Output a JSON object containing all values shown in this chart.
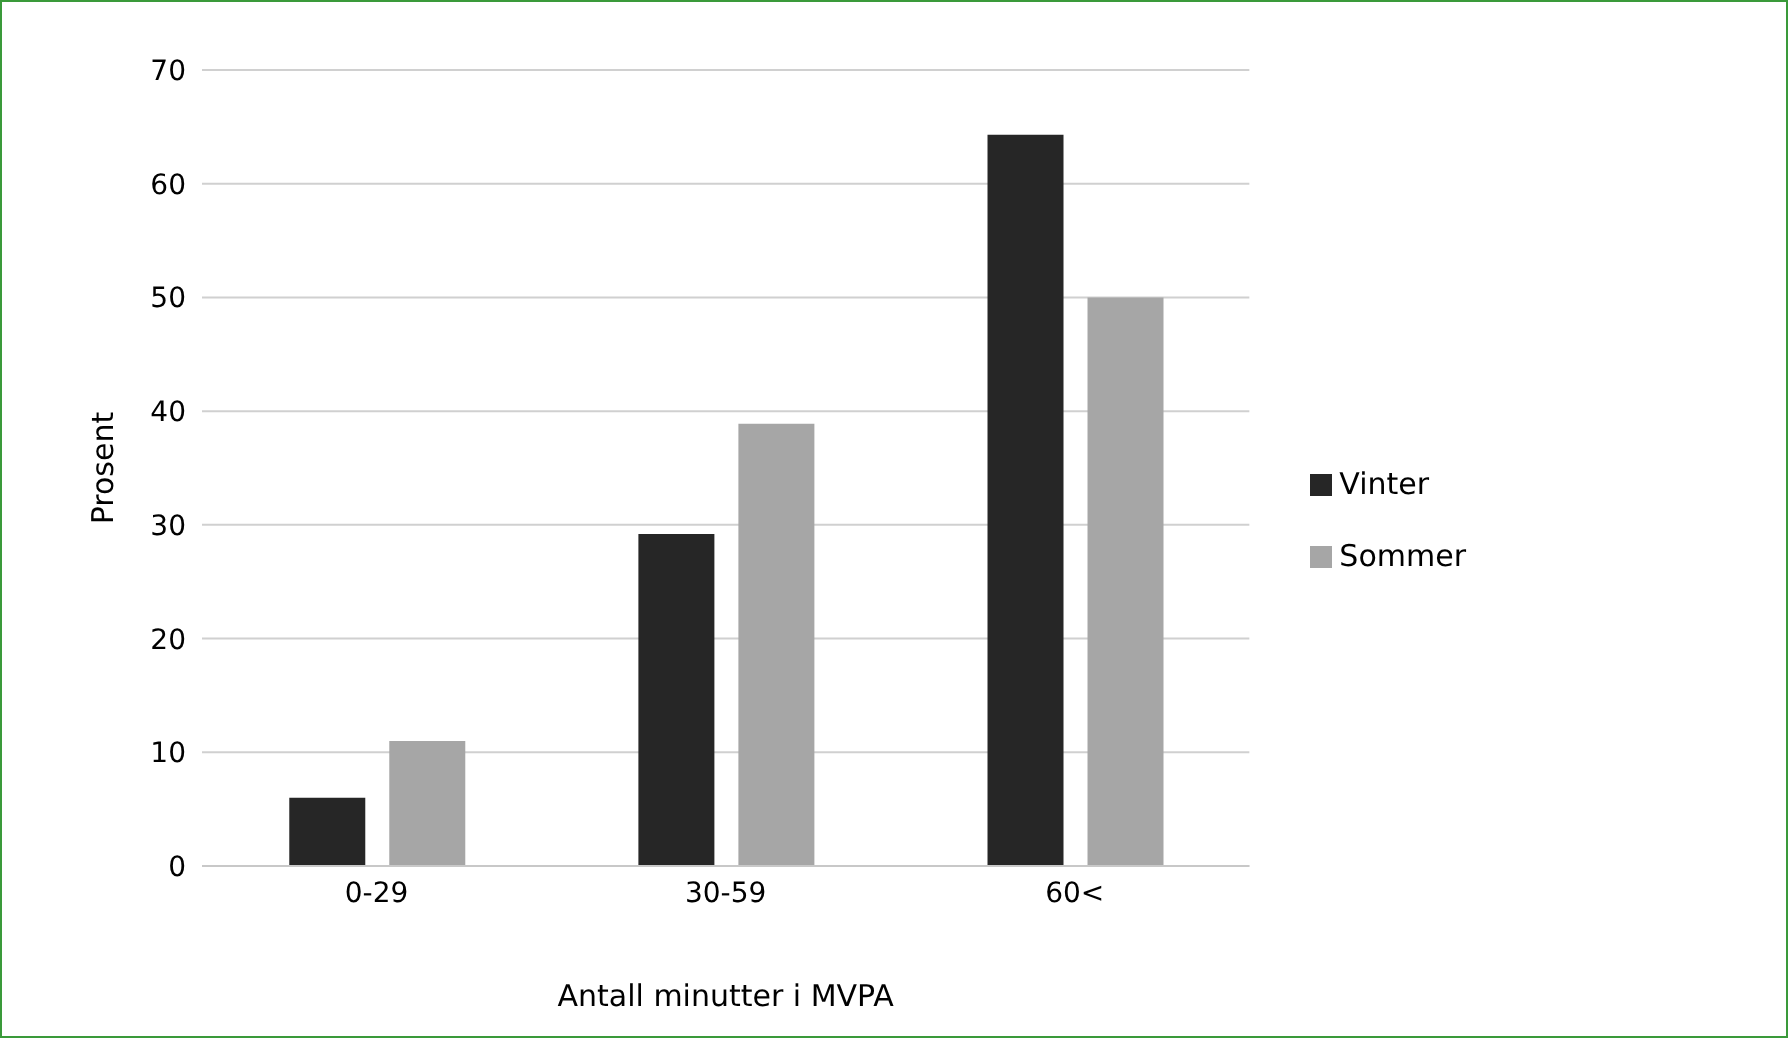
{
  "chart_data": {
    "type": "bar",
    "xlabel": "Antall minutter i MVPA",
    "ylabel": "Prosent",
    "categories": [
      "0-29",
      "30-59",
      "60<"
    ],
    "series": [
      {
        "name": "Vinter",
        "color": "#262626",
        "values": [
          6,
          29.2,
          64.3
        ]
      },
      {
        "name": "Sommer",
        "color": "#a6a6a6",
        "values": [
          11,
          38.9,
          50
        ]
      }
    ],
    "ylim": [
      0,
      70
    ],
    "yticks": [
      0,
      10,
      20,
      30,
      40,
      50,
      60,
      70
    ],
    "grid": "y",
    "legend": "right"
  }
}
